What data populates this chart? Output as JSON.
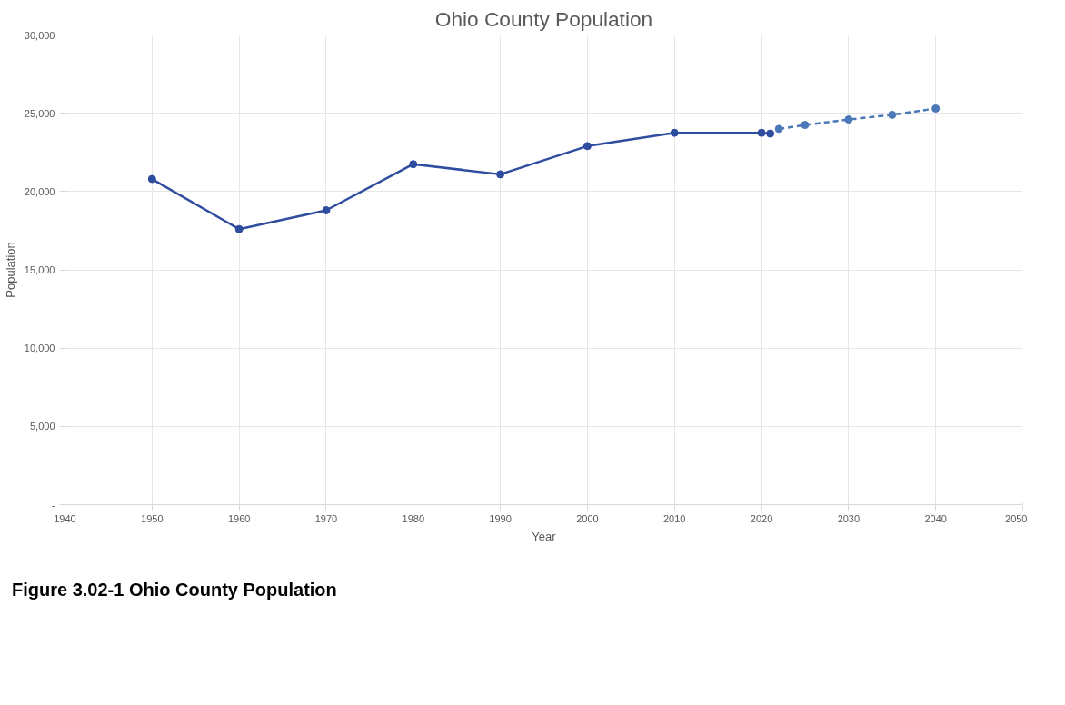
{
  "chart_data": {
    "type": "line",
    "title": "Ohio County Population",
    "xlabel": "Year",
    "ylabel": "Population",
    "annotations": [
      "Figure 3.02-1  Ohio County Population"
    ],
    "series": [
      {
        "color": "#2f4d9e",
        "x": [
          1950,
          1960,
          1970,
          1980,
          1990,
          2000,
          2010,
          2020,
          2021
        ],
        "values": [
          20800,
          17600,
          18800,
          21750,
          21100,
          22900,
          23750,
          23750,
          23700
        ]
      },
      {
        "color": "#4a78b8",
        "line_style": "dashed",
        "x": [
          2022,
          2025,
          2030,
          2035,
          2040
        ],
        "values": [
          24000,
          24250,
          24600,
          24900,
          25300
        ]
      }
    ],
    "xlim": [
      1940,
      2050
    ],
    "xticks": [
      1940,
      1950,
      1960,
      1970,
      1980,
      1990,
      2000,
      2010,
      2020,
      2030,
      2040,
      2050
    ],
    "ylim": [
      0,
      30000
    ],
    "yticks": [
      {
        "value": 0,
        "label": "-"
      },
      {
        "value": 5000,
        "label": "5,000"
      },
      {
        "value": 10000,
        "label": "10,000"
      },
      {
        "value": 15000,
        "label": "15,000"
      },
      {
        "value": 20000,
        "label": "20,000"
      },
      {
        "value": 25000,
        "label": "25,000"
      },
      {
        "value": 30000,
        "label": "30,000"
      }
    ],
    "grid": true,
    "marker": "circle",
    "line_style": "solid"
  }
}
